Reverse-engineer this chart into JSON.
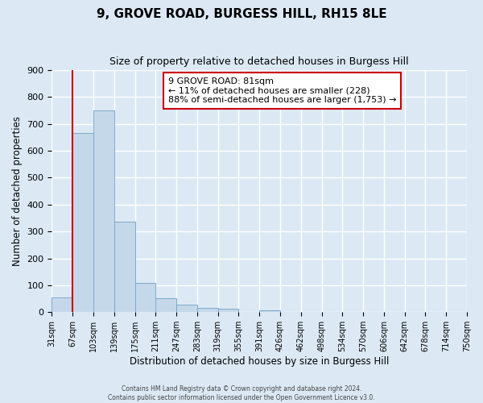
{
  "title": "9, GROVE ROAD, BURGESS HILL, RH15 8LE",
  "subtitle": "Size of property relative to detached houses in Burgess Hill",
  "xlabel": "Distribution of detached houses by size in Burgess Hill",
  "ylabel": "Number of detached properties",
  "bar_color": "#c5d8ea",
  "bar_edge_color": "#7aaac8",
  "background_color": "#dce9f5",
  "grid_color": "#ffffff",
  "bin_labels": [
    "31sqm",
    "67sqm",
    "103sqm",
    "139sqm",
    "175sqm",
    "211sqm",
    "247sqm",
    "283sqm",
    "319sqm",
    "355sqm",
    "391sqm",
    "426sqm",
    "462sqm",
    "498sqm",
    "534sqm",
    "570sqm",
    "606sqm",
    "642sqm",
    "678sqm",
    "714sqm",
    "750sqm"
  ],
  "bar_heights": [
    55,
    665,
    750,
    338,
    110,
    53,
    27,
    17,
    13,
    0,
    7,
    0,
    0,
    0,
    0,
    0,
    0,
    0,
    0,
    0
  ],
  "ylim": [
    0,
    900
  ],
  "yticks": [
    0,
    100,
    200,
    300,
    400,
    500,
    600,
    700,
    800,
    900
  ],
  "annotation_title": "9 GROVE ROAD: 81sqm",
  "annotation_line1": "← 11% of detached houses are smaller (228)",
  "annotation_line2": "88% of semi-detached houses are larger (1,753) →",
  "annotation_box_color": "#ffffff",
  "annotation_box_edge_color": "#cc0000",
  "red_line_color": "#cc0000",
  "footer1": "Contains HM Land Registry data © Crown copyright and database right 2024.",
  "footer2": "Contains public sector information licensed under the Open Government Licence v3.0."
}
